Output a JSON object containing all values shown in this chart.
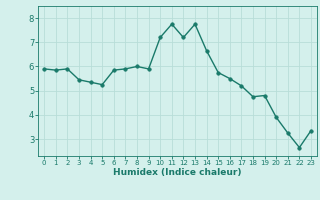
{
  "x": [
    0,
    1,
    2,
    3,
    4,
    5,
    6,
    7,
    8,
    9,
    10,
    11,
    12,
    13,
    14,
    15,
    16,
    17,
    18,
    19,
    20,
    21,
    22,
    23
  ],
  "y": [
    5.9,
    5.85,
    5.9,
    5.45,
    5.35,
    5.25,
    5.85,
    5.9,
    6.0,
    5.9,
    7.2,
    7.75,
    7.2,
    7.75,
    6.65,
    5.75,
    5.5,
    5.2,
    4.75,
    4.8,
    3.9,
    3.25,
    2.65,
    3.35
  ],
  "line_color": "#1a7a6a",
  "marker": "o",
  "marker_size": 2.5,
  "bg_color": "#d4f0ec",
  "grid_color": "#b8ddd8",
  "tick_color": "#1a7a6a",
  "axis_color": "#1a7a6a",
  "xlabel": "Humidex (Indice chaleur)",
  "xlabel_color": "#1a7a6a",
  "yticks": [
    3,
    4,
    5,
    6,
    7,
    8
  ],
  "xticks": [
    0,
    1,
    2,
    3,
    4,
    5,
    6,
    7,
    8,
    9,
    10,
    11,
    12,
    13,
    14,
    15,
    16,
    17,
    18,
    19,
    20,
    21,
    22,
    23
  ],
  "ylim": [
    2.3,
    8.5
  ],
  "xlim": [
    -0.5,
    23.5
  ],
  "linewidth": 1.0,
  "xlabel_fontsize": 6.5,
  "xlabel_fontweight": "bold",
  "ytick_fontsize": 6.0,
  "xtick_fontsize": 5.0
}
